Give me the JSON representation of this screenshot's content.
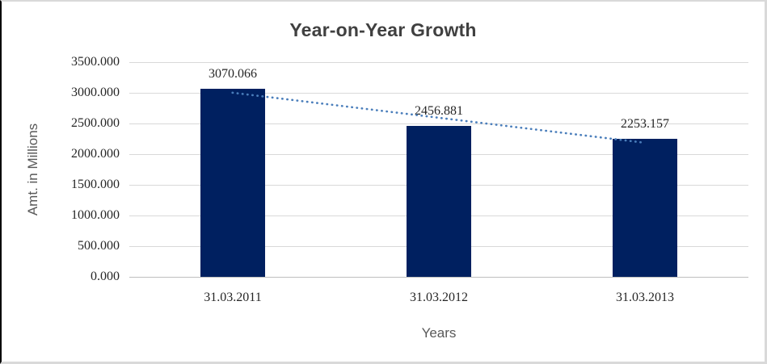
{
  "chart_data": {
    "type": "bar",
    "title": "Year-on-Year Growth",
    "xlabel": "Years",
    "ylabel": "Amt. in Millions",
    "categories": [
      "31.03.2011",
      "31.03.2012",
      "31.03.2013"
    ],
    "values": [
      3070.066,
      2456.881,
      2253.157
    ],
    "data_labels": [
      "3070.066",
      "2456.881",
      "2253.157"
    ],
    "y_ticks": [
      "3500.000",
      "3000.000",
      "2500.000",
      "2000.000",
      "1500.000",
      "1000.000",
      "500.000",
      "0.000"
    ],
    "ylim": [
      0,
      3500
    ],
    "grid": true,
    "legend": "none",
    "trendline": "linear-dotted",
    "colors": {
      "bar": "#002060",
      "trendline": "#4a7ebb",
      "gridline": "#d9d9d9",
      "axis_line": "#bfbfbf",
      "title_text": "#404040",
      "axis_title_text": "#595959",
      "tick_text": "#262626"
    }
  }
}
